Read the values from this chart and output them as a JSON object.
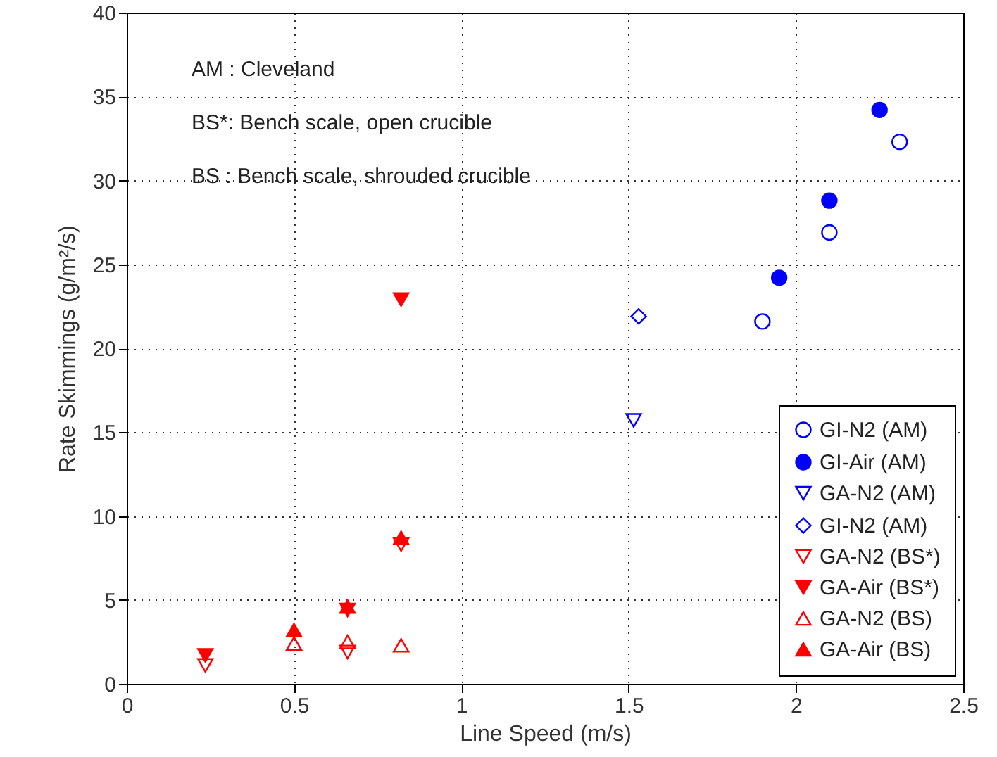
{
  "chart_data": {
    "type": "scatter",
    "xlabel": "Line Speed (m/s)",
    "ylabel": "Rate Skimmings (g/m²/s)",
    "xlim": [
      0,
      2.5
    ],
    "xticks": [
      0,
      0.5,
      1,
      1.5,
      2,
      2.5
    ],
    "ylim": [
      0,
      40
    ],
    "yticks": [
      0,
      5,
      10,
      15,
      20,
      25,
      30,
      35,
      40
    ],
    "grid": true,
    "legend": "bottom right",
    "annotations": [
      "AM : Cleveland",
      "BS*: Bench scale, open crucible",
      "BS  : Bench scale, shrouded crucible"
    ],
    "series": [
      {
        "name": "GI-N2 (AM)",
        "color": "#0000ff",
        "marker": "circle-open",
        "x": [
          1.9,
          2.1,
          2.31
        ],
        "values": [
          21.6,
          26.9,
          32.3
        ]
      },
      {
        "name": "GI-Air (AM)",
        "color": "#0000ff",
        "marker": "circle",
        "x": [
          1.95,
          2.1,
          2.25
        ],
        "values": [
          24.2,
          28.8,
          34.2
        ]
      },
      {
        "name": "GA-N2 (AM)",
        "color": "#0000ff",
        "marker": "triangle-down-open",
        "x": [
          1.515
        ],
        "values": [
          15.7
        ]
      },
      {
        "name": "GI-N2 (AM)",
        "color": "#0000ff",
        "marker": "diamond-open",
        "x": [
          1.53
        ],
        "values": [
          21.9
        ]
      },
      {
        "name": "GA-N2 (BS*)",
        "color": "#ff0000",
        "marker": "triangle-down-open",
        "x": [
          0.235,
          0.66,
          0.82
        ],
        "values": [
          1.1,
          1.9,
          8.3
        ]
      },
      {
        "name": "GA-Air (BS*)",
        "color": "#ff0000",
        "marker": "triangle-down",
        "x": [
          0.235,
          0.66,
          0.82
        ],
        "values": [
          1.7,
          4.4,
          22.9
        ]
      },
      {
        "name": "GA-N2 (BS)",
        "color": "#ff0000",
        "marker": "triangle-open",
        "x": [
          0.5,
          0.66,
          0.82
        ],
        "values": [
          2.4,
          2.5,
          2.3
        ]
      },
      {
        "name": "GA-Air (BS)",
        "color": "#ff0000",
        "marker": "triangle",
        "x": [
          0.5,
          0.66,
          0.82
        ],
        "values": [
          3.2,
          4.6,
          8.7
        ]
      }
    ]
  }
}
